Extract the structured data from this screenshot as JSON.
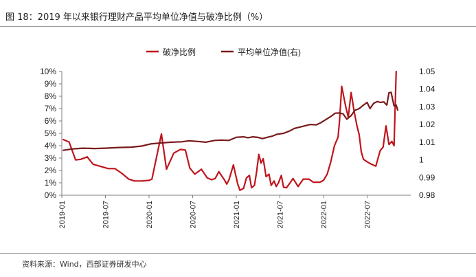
{
  "header": {
    "title": "图 18：2019 年以来银行理财产品平均单位净值与破净比例（%）"
  },
  "footer": {
    "source": "资料来源：Wind，西部证券研发中心"
  },
  "chart_data": {
    "type": "line",
    "title": "2019 年以来银行理财产品平均单位净值与破净比例（%）",
    "legend_position": "top",
    "grid": false,
    "x_range": [
      0,
      48
    ],
    "x_ticks": [
      {
        "x": 0,
        "label": "2019-01"
      },
      {
        "x": 6,
        "label": "2019-07"
      },
      {
        "x": 12,
        "label": "2020-01"
      },
      {
        "x": 18,
        "label": "2020-07"
      },
      {
        "x": 24,
        "label": "2021-01"
      },
      {
        "x": 30,
        "label": "2021-07"
      },
      {
        "x": 36,
        "label": "2022-01"
      },
      {
        "x": 42,
        "label": "2022-07"
      }
    ],
    "y_left": {
      "min": 0,
      "max": 10,
      "ticks": [
        {
          "v": 0,
          "label": "0%"
        },
        {
          "v": 1,
          "label": "1%"
        },
        {
          "v": 2,
          "label": "2%"
        },
        {
          "v": 3,
          "label": "3%"
        },
        {
          "v": 4,
          "label": "4%"
        },
        {
          "v": 5,
          "label": "5%"
        },
        {
          "v": 6,
          "label": "6%"
        },
        {
          "v": 7,
          "label": "7%"
        },
        {
          "v": 8,
          "label": "8%"
        },
        {
          "v": 9,
          "label": "9%"
        },
        {
          "v": 10,
          "label": "10%"
        }
      ]
    },
    "y_right": {
      "min": 0.98,
      "max": 1.05,
      "ticks": [
        {
          "v": 0.98,
          "label": "0.98"
        },
        {
          "v": 0.99,
          "label": "0.99"
        },
        {
          "v": 1.0,
          "label": "1"
        },
        {
          "v": 1.01,
          "label": "1.01"
        },
        {
          "v": 1.02,
          "label": "1.02"
        },
        {
          "v": 1.03,
          "label": "1.03"
        },
        {
          "v": 1.04,
          "label": "1.04"
        },
        {
          "v": 1.05,
          "label": "1.05"
        }
      ]
    },
    "series": [
      {
        "name": "破净比例",
        "axis": "left",
        "color": "#c0141c",
        "points": [
          [
            0.2,
            4.5
          ],
          [
            1.0,
            4.3
          ],
          [
            1.9,
            2.85
          ],
          [
            2.6,
            2.9
          ],
          [
            3.5,
            3.1
          ],
          [
            4.3,
            2.5
          ],
          [
            5.2,
            2.35
          ],
          [
            6.4,
            2.15
          ],
          [
            7.3,
            2.15
          ],
          [
            8.3,
            1.75
          ],
          [
            9.2,
            1.3
          ],
          [
            10.0,
            1.15
          ],
          [
            11.0,
            1.15
          ],
          [
            12.0,
            1.2
          ],
          [
            12.4,
            1.3
          ],
          [
            13.7,
            4.95
          ],
          [
            14.4,
            2.1
          ],
          [
            15.4,
            3.4
          ],
          [
            16.3,
            3.7
          ],
          [
            17.0,
            3.65
          ],
          [
            17.6,
            2.2
          ],
          [
            18.3,
            1.7
          ],
          [
            19.2,
            2.1
          ],
          [
            20.0,
            1.4
          ],
          [
            20.6,
            1.25
          ],
          [
            21.1,
            1.35
          ],
          [
            21.6,
            1.9
          ],
          [
            22.3,
            1.3
          ],
          [
            22.7,
            0.9
          ],
          [
            23.0,
            1.25
          ],
          [
            23.6,
            2.45
          ],
          [
            24.2,
            0.9
          ],
          [
            24.5,
            0.4
          ],
          [
            25.0,
            0.55
          ],
          [
            25.4,
            1.4
          ],
          [
            25.8,
            1.6
          ],
          [
            26.1,
            0.6
          ],
          [
            26.5,
            0.8
          ],
          [
            26.8,
            1.9
          ],
          [
            27.1,
            3.3
          ],
          [
            27.4,
            2.6
          ],
          [
            27.7,
            2.95
          ],
          [
            28.1,
            1.5
          ],
          [
            28.5,
            1.7
          ],
          [
            28.8,
            0.8
          ],
          [
            29.2,
            1.15
          ],
          [
            29.5,
            0.7
          ],
          [
            29.8,
            1.0
          ],
          [
            30.2,
            1.6
          ],
          [
            30.5,
            0.65
          ],
          [
            30.9,
            0.6
          ],
          [
            31.4,
            1.0
          ],
          [
            31.8,
            1.35
          ],
          [
            32.5,
            0.7
          ],
          [
            33.2,
            1.3
          ],
          [
            34.0,
            1.3
          ],
          [
            34.6,
            1.05
          ],
          [
            35.5,
            1.05
          ],
          [
            36.0,
            1.2
          ],
          [
            36.5,
            1.7
          ],
          [
            37.0,
            2.7
          ],
          [
            37.5,
            4.0
          ],
          [
            38.0,
            4.7
          ],
          [
            38.2,
            6.0
          ],
          [
            38.5,
            8.8
          ],
          [
            39.0,
            7.3
          ],
          [
            39.4,
            6.3
          ],
          [
            39.8,
            8.3
          ],
          [
            40.2,
            6.8
          ],
          [
            40.6,
            5.6
          ],
          [
            40.9,
            4.9
          ],
          [
            41.2,
            3.5
          ],
          [
            41.5,
            2.9
          ],
          [
            42.0,
            2.7
          ],
          [
            42.6,
            2.5
          ],
          [
            43.2,
            2.35
          ],
          [
            43.5,
            3.0
          ],
          [
            43.8,
            3.6
          ],
          [
            44.2,
            3.9
          ],
          [
            44.6,
            5.6
          ],
          [
            45.0,
            4.1
          ],
          [
            45.4,
            4.35
          ],
          [
            45.7,
            4.0
          ],
          [
            46.0,
            10.0
          ]
        ]
      },
      {
        "name": "平均单位净值(右)",
        "axis": "right",
        "color": "#7a1a1a",
        "points": [
          [
            0.2,
            1.0054
          ],
          [
            1.5,
            1.0062
          ],
          [
            2.9,
            1.0066
          ],
          [
            4.5,
            1.0064
          ],
          [
            6.0,
            1.0066
          ],
          [
            7.8,
            1.007
          ],
          [
            9.5,
            1.0072
          ],
          [
            11.0,
            1.0078
          ],
          [
            12.2,
            1.009
          ],
          [
            13.5,
            1.0095
          ],
          [
            15.0,
            1.01
          ],
          [
            16.5,
            1.0102
          ],
          [
            17.5,
            1.0108
          ],
          [
            18.7,
            1.0104
          ],
          [
            19.8,
            1.01
          ],
          [
            21.0,
            1.011
          ],
          [
            22.0,
            1.0112
          ],
          [
            23.0,
            1.011
          ],
          [
            24.0,
            1.0128
          ],
          [
            25.0,
            1.013
          ],
          [
            25.6,
            1.0125
          ],
          [
            26.3,
            1.013
          ],
          [
            27.0,
            1.0127
          ],
          [
            27.6,
            1.012
          ],
          [
            28.3,
            1.0128
          ],
          [
            29.0,
            1.0135
          ],
          [
            29.6,
            1.0145
          ],
          [
            30.5,
            1.015
          ],
          [
            31.3,
            1.0163
          ],
          [
            32.0,
            1.0178
          ],
          [
            33.2,
            1.019
          ],
          [
            34.2,
            1.02
          ],
          [
            35.0,
            1.0198
          ],
          [
            35.7,
            1.0212
          ],
          [
            36.4,
            1.023
          ],
          [
            37.1,
            1.0248
          ],
          [
            37.6,
            1.0264
          ],
          [
            38.2,
            1.0265
          ],
          [
            38.7,
            1.026
          ],
          [
            39.2,
            1.023
          ],
          [
            39.8,
            1.025
          ],
          [
            40.3,
            1.028
          ],
          [
            40.9,
            1.029
          ],
          [
            41.5,
            1.031
          ],
          [
            42.0,
            1.0325
          ],
          [
            42.4,
            1.029
          ],
          [
            42.9,
            1.032
          ],
          [
            43.4,
            1.033
          ],
          [
            43.8,
            1.0325
          ],
          [
            44.3,
            1.0328
          ],
          [
            44.7,
            1.031
          ],
          [
            45.0,
            1.038
          ],
          [
            45.3,
            1.0382
          ],
          [
            45.7,
            1.0305
          ],
          [
            46.0,
            1.031
          ],
          [
            46.2,
            1.0282
          ]
        ]
      }
    ]
  }
}
